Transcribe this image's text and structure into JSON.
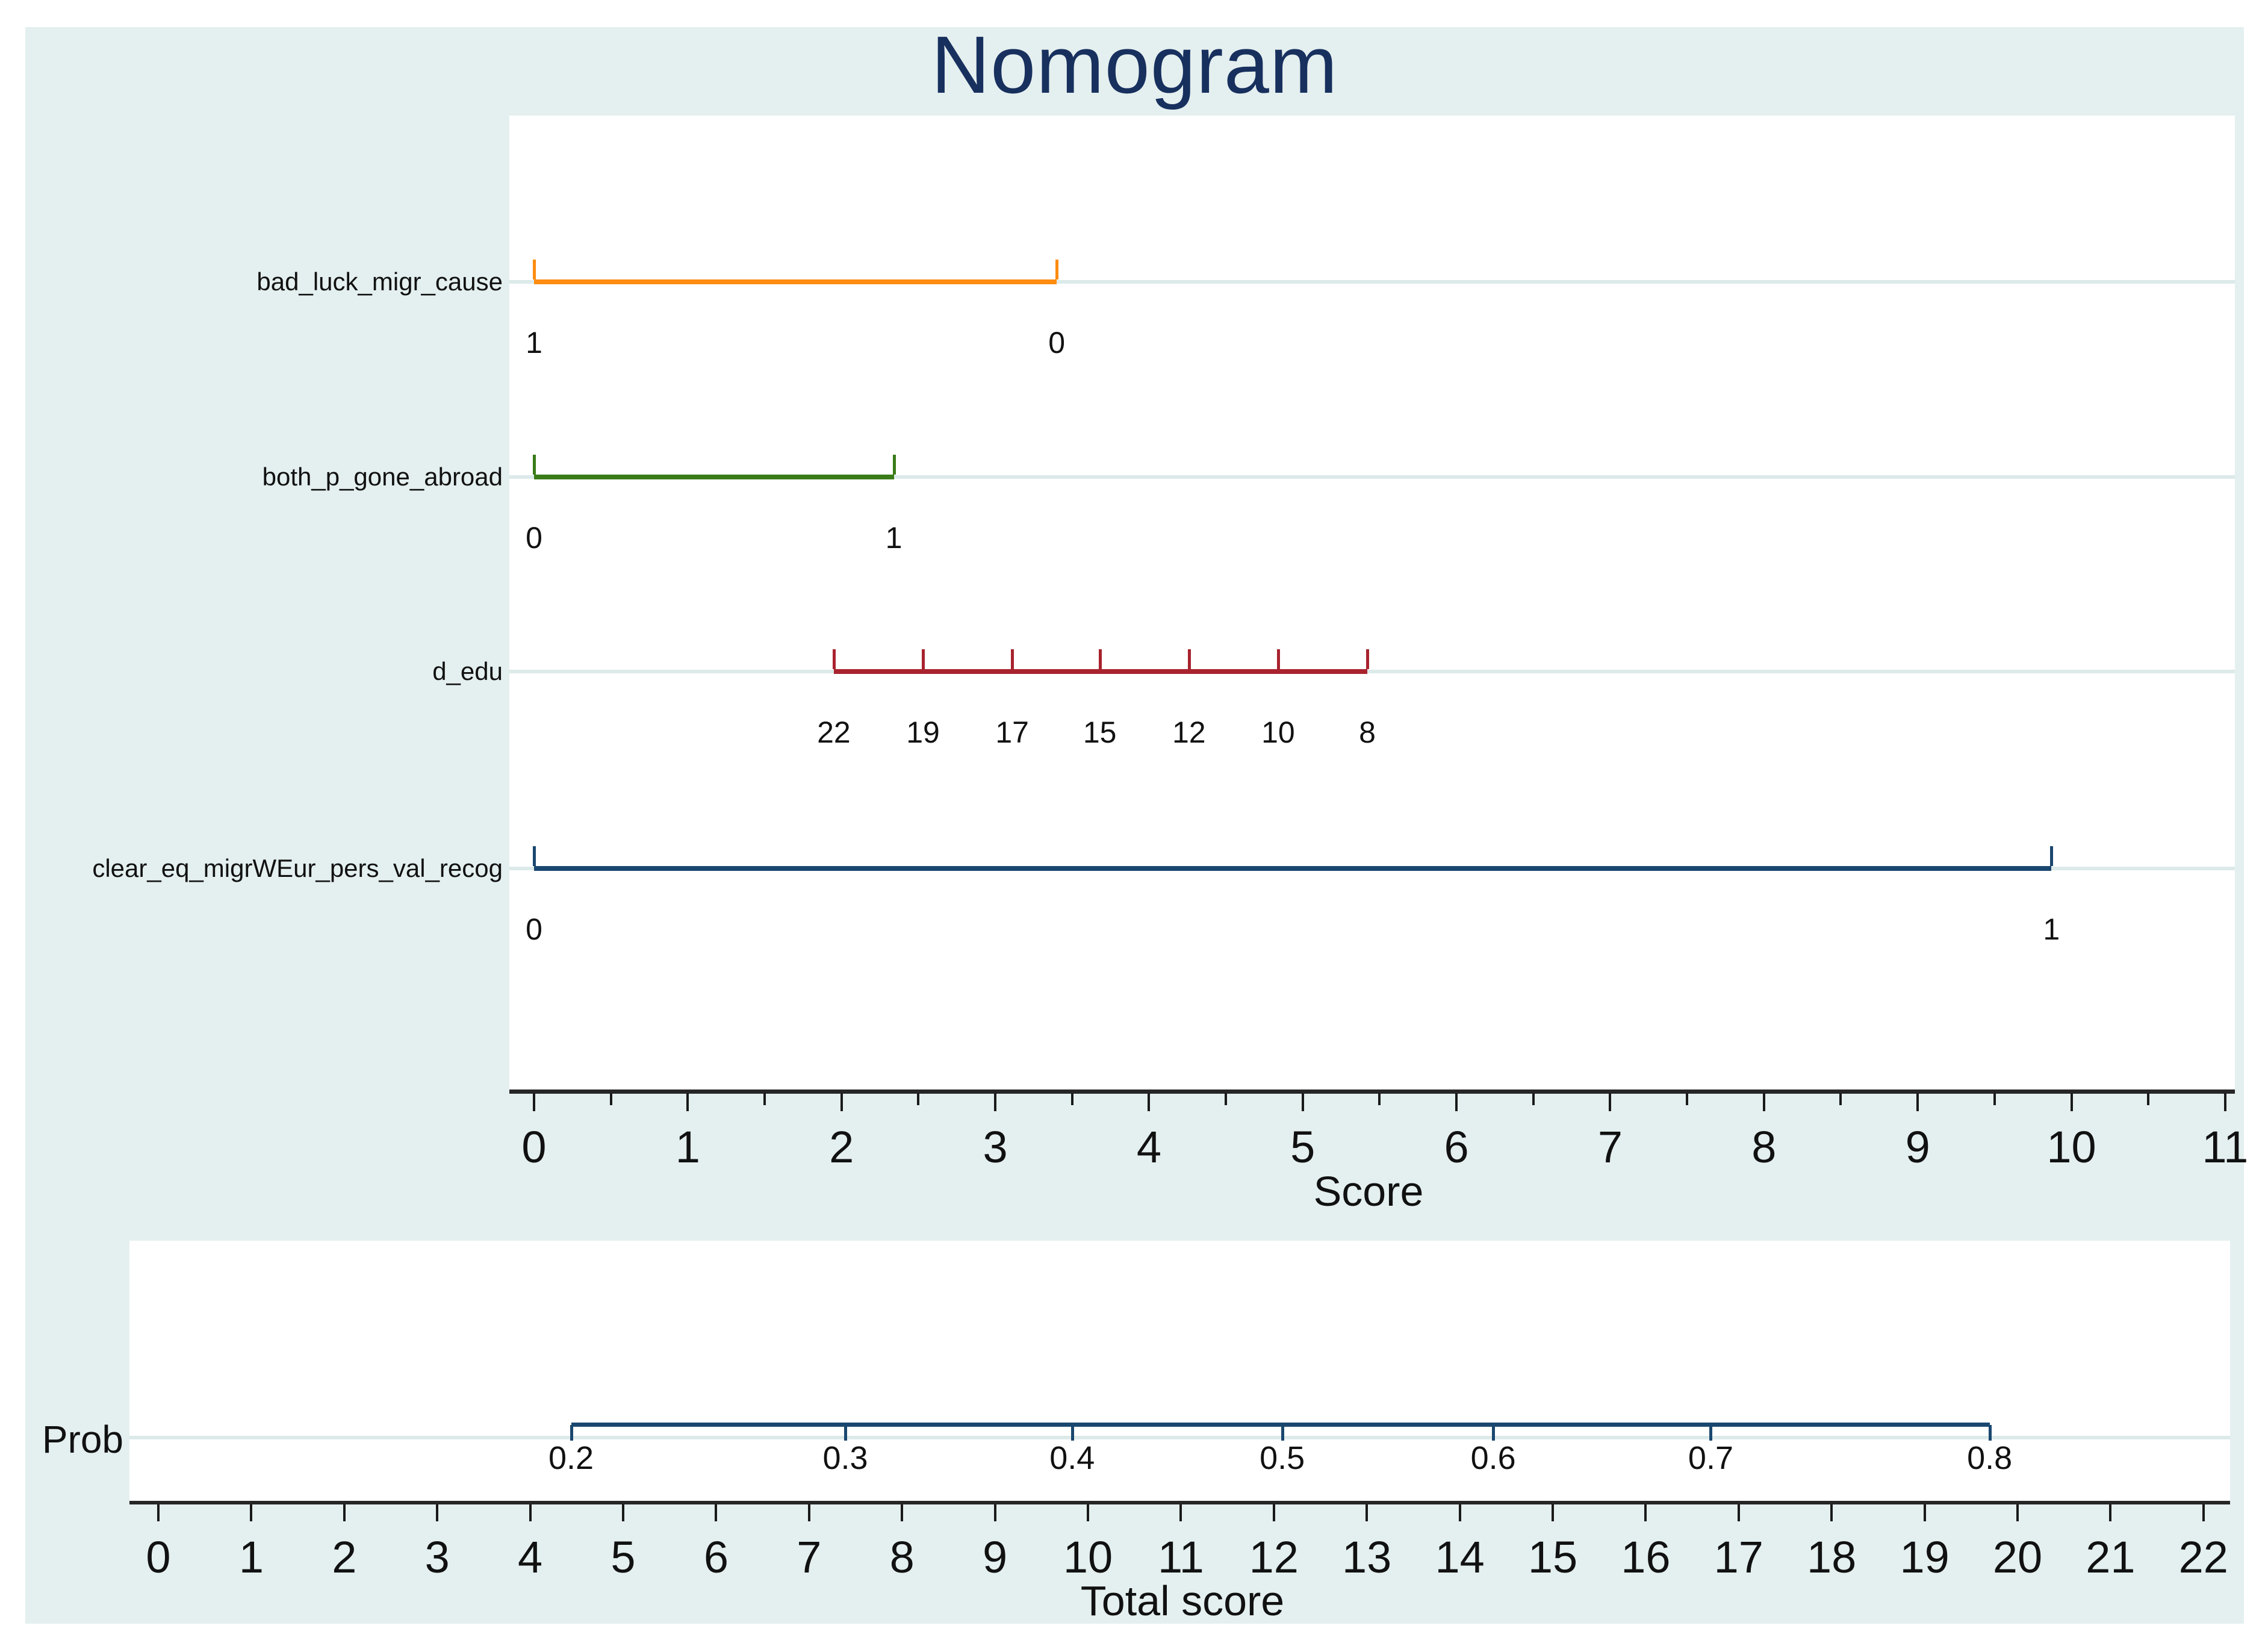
{
  "title": "Nomogram",
  "colors": {
    "page_background": "#ffffff",
    "figure_background": "#e4efef",
    "panel_background": "#ffffff",
    "row_guide_line": "#ddeaea",
    "axis_line": "#262626",
    "text": "#111111",
    "title_text": "#17305e",
    "orange_series": "#fd8c10",
    "green_series": "#397c17",
    "red_series": "#a8232e",
    "navy_series": "#1a476f"
  },
  "chart_data": {
    "type": "nomogram",
    "title": "Nomogram",
    "score_axis": {
      "label": "Score",
      "min": 0,
      "max": 11,
      "major_tick_step": 1,
      "minor_tick_step": 0.5,
      "tick_labels": [
        "0",
        "1",
        "2",
        "3",
        "4",
        "5",
        "6",
        "7",
        "8",
        "9",
        "10",
        "11"
      ]
    },
    "variables": [
      {
        "name": "bad_luck_migr_cause",
        "color_key": "orange_series",
        "score_range": [
          0,
          3.4
        ],
        "points": [
          {
            "value": "1",
            "score": 0
          },
          {
            "value": "0",
            "score": 3.4
          }
        ]
      },
      {
        "name": "both_p_gone_abroad",
        "color_key": "green_series",
        "score_range": [
          0,
          2.34
        ],
        "points": [
          {
            "value": "0",
            "score": 0
          },
          {
            "value": "1",
            "score": 2.34
          }
        ]
      },
      {
        "name": "d_edu",
        "color_key": "red_series",
        "score_range": [
          1.95,
          5.42
        ],
        "points": [
          {
            "value": "22",
            "score": 1.95
          },
          {
            "value": "19",
            "score": 2.53
          },
          {
            "value": "17",
            "score": 3.11
          },
          {
            "value": "15",
            "score": 3.68
          },
          {
            "value": "12",
            "score": 4.26
          },
          {
            "value": "10",
            "score": 4.84
          },
          {
            "value": "8",
            "score": 5.42
          }
        ]
      },
      {
        "name": "clear_eq_migrWEur_pers_val_recog",
        "color_key": "navy_series",
        "score_range": [
          0,
          9.87
        ],
        "points": [
          {
            "value": "0",
            "score": 0
          },
          {
            "value": "1",
            "score": 9.87
          }
        ]
      }
    ],
    "total_axis": {
      "label": "Total score",
      "min": 0,
      "max": 22,
      "tick_step": 1,
      "tick_labels": [
        "0",
        "1",
        "2",
        "3",
        "4",
        "5",
        "6",
        "7",
        "8",
        "9",
        "10",
        "11",
        "12",
        "13",
        "14",
        "15",
        "16",
        "17",
        "18",
        "19",
        "20",
        "21",
        "22"
      ]
    },
    "prob_scale": {
      "label": "Prob",
      "color_key": "navy_series",
      "ticks": [
        {
          "value": "0.2",
          "total_score": 4.44
        },
        {
          "value": "0.3",
          "total_score": 7.39
        },
        {
          "value": "0.4",
          "total_score": 9.83
        },
        {
          "value": "0.5",
          "total_score": 12.09
        },
        {
          "value": "0.6",
          "total_score": 14.36
        },
        {
          "value": "0.7",
          "total_score": 16.7
        },
        {
          "value": "0.8",
          "total_score": 19.7
        }
      ]
    }
  }
}
